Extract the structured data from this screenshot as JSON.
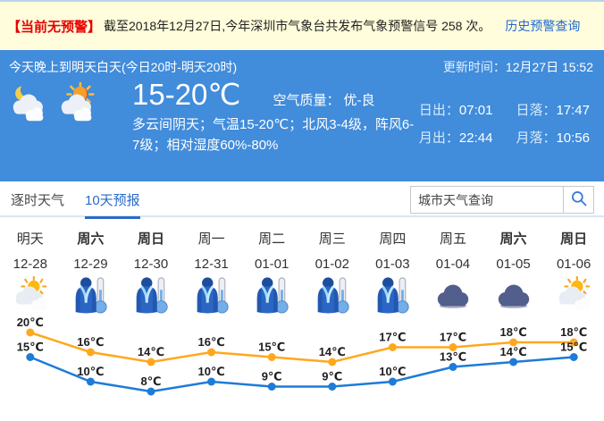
{
  "notice": {
    "badge": "【当前无预警】",
    "text": "截至2018年12月27日,今年深圳市气象台共发布气象预警信号 258 次。",
    "link": "历史预警查询"
  },
  "banner": {
    "period": "今天晚上到明天白天(今日20时-明天20时)",
    "update_label": "更新时间：",
    "update_value": "12月27日 15:52",
    "temp_range": "15-20℃",
    "air_label": "空气质量：",
    "air_value": "优-良",
    "description": "多云间阴天；气温15-20℃；北风3-4级，阵风6-7级；相对湿度60%-80%",
    "icons": [
      "cloudy-night",
      "cloudy-day"
    ],
    "sun_moon": [
      {
        "label": "日出：",
        "value": "07:01"
      },
      {
        "label": "日落：",
        "value": "17:47"
      },
      {
        "label": "月出：",
        "value": "22:44"
      },
      {
        "label": "月落：",
        "value": "10:56"
      }
    ]
  },
  "tabs": {
    "hourly": "逐时天气",
    "ten_day": "10天预报"
  },
  "search": {
    "placeholder": "城市天气查询",
    "icon": "search-icon"
  },
  "forecast": {
    "days": [
      {
        "day": "明天",
        "date": "12-28",
        "icon": "partly-cloudy",
        "bold": false
      },
      {
        "day": "周六",
        "date": "12-29",
        "icon": "cold",
        "bold": true
      },
      {
        "day": "周日",
        "date": "12-30",
        "icon": "cold",
        "bold": true
      },
      {
        "day": "周一",
        "date": "12-31",
        "icon": "cold",
        "bold": false
      },
      {
        "day": "周二",
        "date": "01-01",
        "icon": "cold",
        "bold": false
      },
      {
        "day": "周三",
        "date": "01-02",
        "icon": "cold",
        "bold": false
      },
      {
        "day": "周四",
        "date": "01-03",
        "icon": "cold",
        "bold": false
      },
      {
        "day": "周五",
        "date": "01-04",
        "icon": "overcast",
        "bold": false
      },
      {
        "day": "周六",
        "date": "01-05",
        "icon": "overcast",
        "bold": true
      },
      {
        "day": "周日",
        "date": "01-06",
        "icon": "partly-cloudy",
        "bold": true
      }
    ]
  },
  "chart_data": {
    "type": "line",
    "x": [
      "12-28",
      "12-29",
      "12-30",
      "12-31",
      "01-01",
      "01-02",
      "01-03",
      "01-04",
      "01-05",
      "01-06"
    ],
    "series": [
      {
        "name": "high",
        "color": "#FFA81E",
        "values": [
          20,
          16,
          14,
          16,
          15,
          14,
          17,
          17,
          18,
          18
        ]
      },
      {
        "name": "low",
        "color": "#1E7BD7",
        "values": [
          15,
          10,
          8,
          10,
          9,
          9,
          10,
          13,
          14,
          15
        ]
      }
    ],
    "unit": "℃",
    "ylim": [
      6,
      22
    ],
    "grid": false,
    "legend": "none"
  },
  "colors": {
    "panel_blue": "#418CDB",
    "notice_bg": "#FFFDDB",
    "alert_red": "#E80000",
    "link_blue": "#2169D1",
    "tab_active": "#2A6AC8",
    "high_line": "#FFA81E",
    "low_line": "#1E7BD7"
  }
}
